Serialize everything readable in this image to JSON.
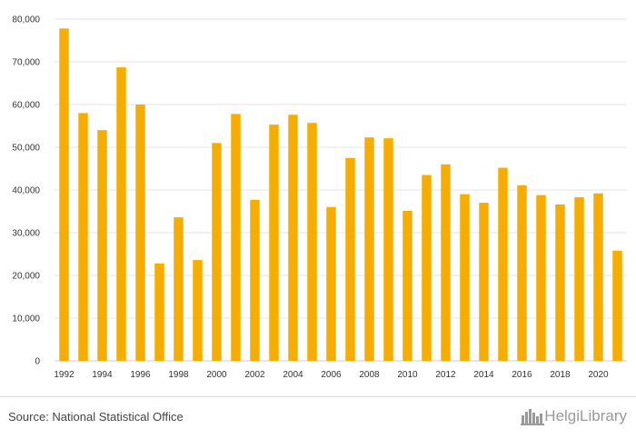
{
  "chart_data": {
    "type": "bar",
    "categories": [
      "1992",
      "1993",
      "1994",
      "1995",
      "1996",
      "1997",
      "1998",
      "1999",
      "2000",
      "2001",
      "2002",
      "2003",
      "2004",
      "2005",
      "2006",
      "2007",
      "2008",
      "2009",
      "2010",
      "2011",
      "2012",
      "2013",
      "2014",
      "2015",
      "2016",
      "2017",
      "2018",
      "2019",
      "2020",
      "2021"
    ],
    "values": [
      77800,
      58000,
      54000,
      68700,
      60000,
      22800,
      33600,
      23600,
      51000,
      57800,
      37700,
      55300,
      57600,
      55700,
      36000,
      47500,
      52300,
      52100,
      35100,
      43500,
      46000,
      39000,
      37000,
      45200,
      41100,
      38800,
      36600,
      38300,
      39200,
      25800
    ],
    "x_tick_labels": [
      "1992",
      "1994",
      "1996",
      "1998",
      "2000",
      "2002",
      "2004",
      "2006",
      "2008",
      "2010",
      "2012",
      "2014",
      "2016",
      "2018",
      "2020"
    ],
    "y_tick_labels": [
      "0",
      "10,000",
      "20,000",
      "30,000",
      "40,000",
      "50,000",
      "60,000",
      "70,000",
      "80,000"
    ],
    "ylim": [
      0,
      80000
    ],
    "title": "",
    "xlabel": "",
    "ylabel": "",
    "grid": true,
    "bar_color": "#f7ad00",
    "grid_color": "#e6e6e6"
  },
  "footer": {
    "source": "Source: National Statistical Office",
    "logo_text": "HelgiLibrary",
    "logo_icon": "city-skyline-icon"
  }
}
